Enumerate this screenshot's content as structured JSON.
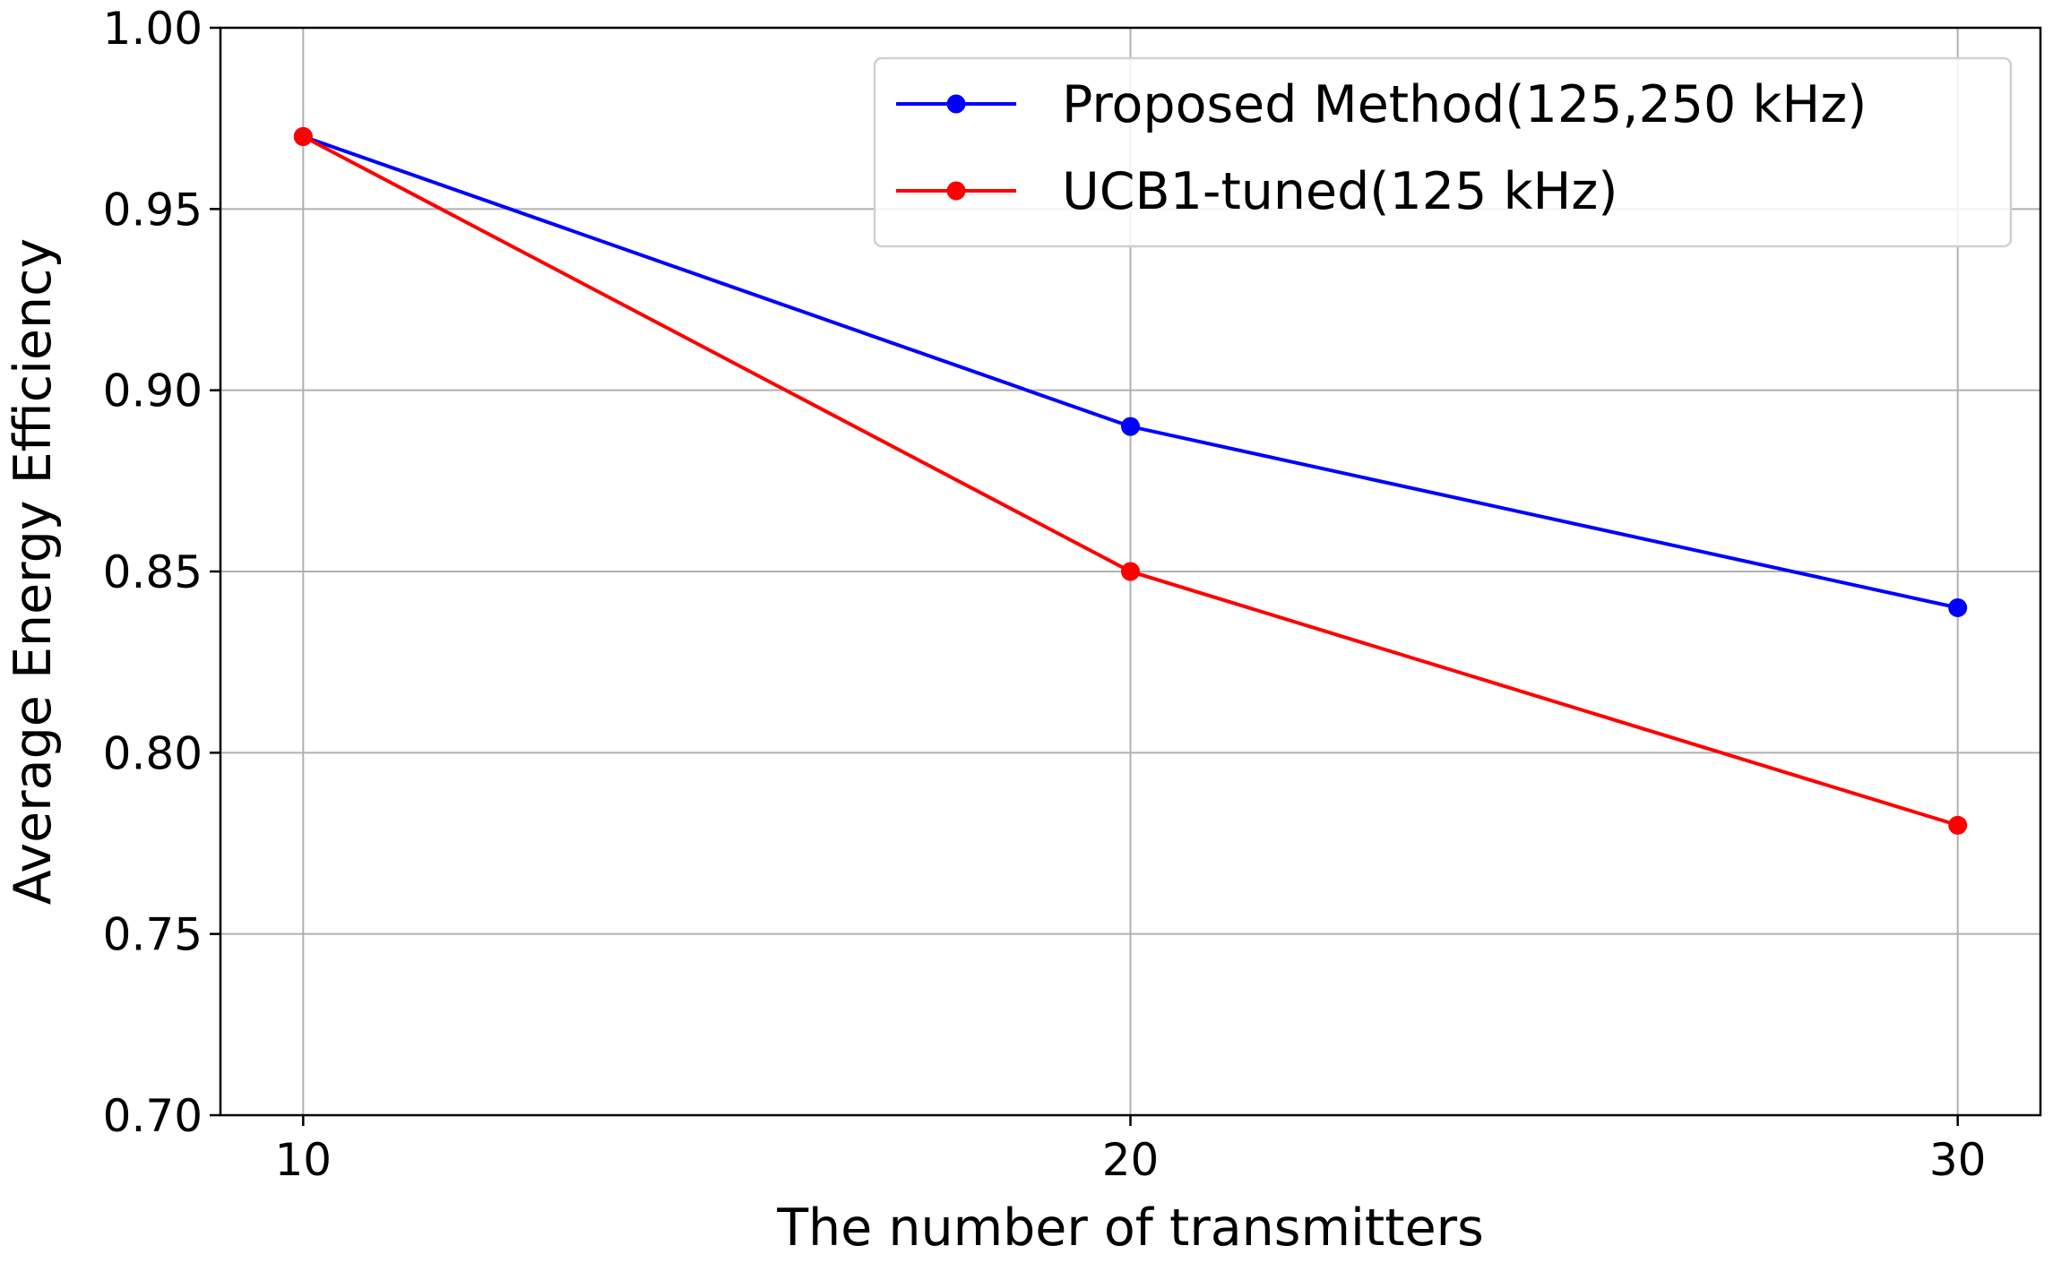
{
  "chart_data": {
    "type": "line",
    "x": [
      10,
      20,
      30
    ],
    "xlabel": "The number of transmitters",
    "ylabel": "Average Energy Efficiency",
    "xlim": [
      9,
      31
    ],
    "ylim": [
      0.7,
      1.0
    ],
    "xticks": [
      "10",
      "20",
      "30"
    ],
    "yticks": [
      "0.70",
      "0.75",
      "0.80",
      "0.85",
      "0.90",
      "0.95",
      "1.00"
    ],
    "grid": true,
    "legend_position": "top-right",
    "series": [
      {
        "name": "Proposed Method(125,250 kHz)",
        "color": "#0000ff",
        "marker": "circle",
        "values": [
          0.97,
          0.89,
          0.84
        ]
      },
      {
        "name": "UCB1-tuned(125 kHz)",
        "color": "#ff0000",
        "marker": "circle",
        "values": [
          0.97,
          0.85,
          0.78
        ]
      }
    ]
  }
}
